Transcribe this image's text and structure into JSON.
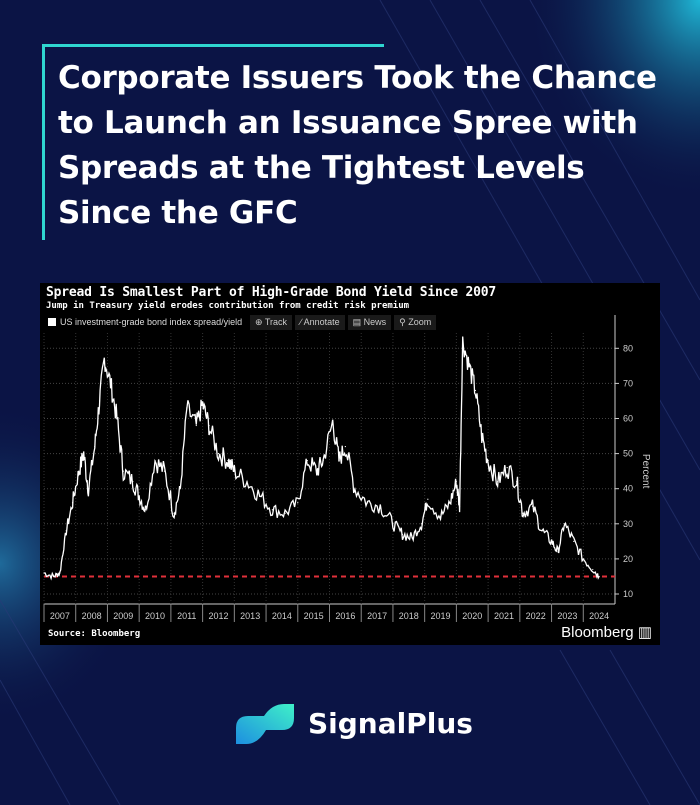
{
  "headline": "Corporate Issuers Took the Chance to Launch an Issuance Spree with Spreads at the Tightest Levels Since the GFC",
  "brand": {
    "name": "SignalPlus",
    "accent": "#2fd6d0"
  },
  "chart_panel": {
    "tools": [
      "Track",
      "Annotate",
      "News",
      "Zoom"
    ],
    "source": "Source: Bloomberg",
    "publisher": "Bloomberg"
  },
  "chart_data": {
    "type": "line",
    "title": "Spread Is Smallest Part of High-Grade Bond Yield Since 2007",
    "subtitle": "Jump in Treasury yield erodes contribution from credit risk premium",
    "ylabel": "Percent",
    "ylim": [
      10,
      85
    ],
    "yticks": [
      10,
      20,
      30,
      40,
      50,
      60,
      70,
      80
    ],
    "xlim": [
      2007,
      2025
    ],
    "xticks": [
      "2007",
      "2008",
      "2009",
      "2010",
      "2011",
      "2012",
      "2013",
      "2014",
      "2015",
      "2016",
      "2017",
      "2018",
      "2019",
      "2020",
      "2021",
      "2022",
      "2023",
      "2024"
    ],
    "grid": true,
    "series": [
      {
        "name": "US investment-grade bond index spread/yield",
        "color": "#ffffff",
        "x": [
          2007.0,
          2007.3,
          2007.5,
          2007.7,
          2007.9,
          2008.1,
          2008.25,
          2008.4,
          2008.6,
          2008.75,
          2008.9,
          2009.1,
          2009.3,
          2009.5,
          2009.8,
          2010.0,
          2010.2,
          2010.5,
          2010.8,
          2011.1,
          2011.3,
          2011.5,
          2011.8,
          2012.0,
          2012.2,
          2012.5,
          2012.8,
          2013.0,
          2013.4,
          2013.8,
          2014.2,
          2014.6,
          2015.0,
          2015.3,
          2015.6,
          2015.8,
          2016.1,
          2016.3,
          2016.5,
          2016.8,
          2017.2,
          2017.6,
          2018.0,
          2018.3,
          2018.6,
          2018.9,
          2019.1,
          2019.5,
          2019.8,
          2020.0,
          2020.1,
          2020.2,
          2020.4,
          2020.6,
          2020.8,
          2021.0,
          2021.3,
          2021.6,
          2021.9,
          2022.1,
          2022.4,
          2022.7,
          2023.0,
          2023.2,
          2023.4,
          2023.7,
          2024.0,
          2024.3,
          2024.5
        ],
        "y": [
          16,
          15,
          16,
          28,
          36,
          45,
          50,
          40,
          52,
          65,
          77,
          70,
          60,
          45,
          42,
          38,
          34,
          48,
          45,
          33,
          40,
          63,
          58,
          64,
          58,
          50,
          48,
          45,
          42,
          38,
          34,
          33,
          36,
          48,
          45,
          48,
          59,
          48,
          52,
          40,
          36,
          35,
          30,
          27,
          26,
          30,
          37,
          32,
          36,
          42,
          35,
          82,
          75,
          68,
          55,
          48,
          42,
          46,
          42,
          33,
          35,
          28,
          25,
          22,
          30,
          25,
          20,
          17,
          15
        ]
      }
    ],
    "reference_line": {
      "value": 15,
      "color": "#e0303a",
      "style": "dashed"
    }
  }
}
